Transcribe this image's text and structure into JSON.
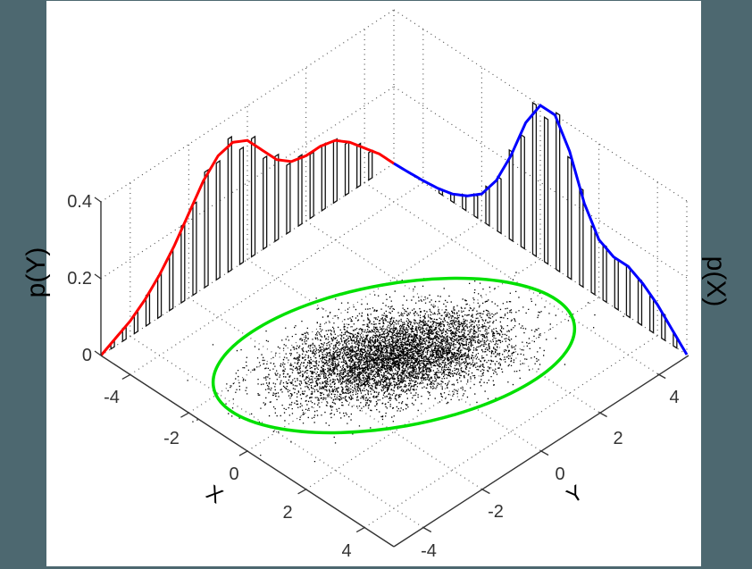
{
  "colors": {
    "background": "#4d6870",
    "panel": "#ffffff",
    "red_curve": "#ff0000",
    "blue_curve": "#0000ff",
    "ellipse": "#00e000",
    "scatter": "#000000",
    "grid": "#555555",
    "axis": "#333333"
  },
  "chart_data": {
    "type": "scatter",
    "title": "",
    "description": "3D view of a bivariate normal sample (scatter on the X-Y floor) with a green confidence ellipse, and marginal densities with histograms projected onto the back walls: p(Y) in red on the left wall, p(X) in blue on the right wall.",
    "xlabel": "X",
    "ylabel": "Y",
    "zlabel_left": "p(Y)",
    "zlabel_right": "p(X)",
    "x_ticks": [
      "-4",
      "-2",
      "0",
      "2",
      "4"
    ],
    "y_ticks": [
      "-4",
      "-2",
      "0",
      "2",
      "4"
    ],
    "z_ticks": [
      "0",
      "0.2",
      "0.4"
    ],
    "xlim": [
      -5,
      5
    ],
    "ylim": [
      -5,
      5
    ],
    "zlim": [
      0,
      0.4
    ],
    "grid": true,
    "series": [
      {
        "name": "p(Y)",
        "type": "line",
        "color": "#ff0000",
        "x": [
          -5,
          -4.5,
          -4,
          -3.5,
          -3,
          -2.5,
          -2,
          -1.5,
          -1,
          -0.5,
          0,
          0.5,
          1,
          1.5,
          2,
          2.5,
          3,
          3.5,
          4,
          4.5,
          5
        ],
        "values": [
          0.0,
          0.02,
          0.04,
          0.07,
          0.11,
          0.16,
          0.22,
          0.28,
          0.32,
          0.33,
          0.31,
          0.26,
          0.21,
          0.18,
          0.17,
          0.17,
          0.16,
          0.13,
          0.09,
          0.05,
          0.0
        ]
      },
      {
        "name": "p(X)",
        "type": "line",
        "color": "#0000ff",
        "x": [
          -5,
          -4.5,
          -4,
          -3.5,
          -3,
          -2.5,
          -2,
          -1.5,
          -1,
          -0.5,
          0,
          0.5,
          1,
          1.5,
          2,
          2.5,
          3,
          3.5,
          4,
          4.5,
          5
        ],
        "values": [
          0.0,
          0.04,
          0.08,
          0.11,
          0.13,
          0.13,
          0.15,
          0.22,
          0.33,
          0.4,
          0.4,
          0.33,
          0.22,
          0.13,
          0.07,
          0.04,
          0.02,
          0.01,
          0.005,
          0.002,
          0.0
        ]
      },
      {
        "name": "samples",
        "type": "scatter",
        "color": "#000000",
        "mean": [
          0.3,
          0.3
        ],
        "approx_count": 10000
      },
      {
        "name": "confidence-ellipse",
        "type": "line",
        "color": "#00e000"
      }
    ]
  },
  "axes": {
    "z_ticks": [
      {
        "label": "0",
        "x": 103,
        "y": 404
      },
      {
        "label": "0.2",
        "x": 103,
        "y": 318
      },
      {
        "label": "0.4",
        "x": 103,
        "y": 232
      }
    ],
    "x_ticks": [
      {
        "label": "-4",
        "x": 125,
        "y": 451
      },
      {
        "label": "-2",
        "x": 192,
        "y": 497
      },
      {
        "label": "0",
        "x": 262,
        "y": 537
      },
      {
        "label": "2",
        "x": 322,
        "y": 580
      },
      {
        "label": "4",
        "x": 388,
        "y": 623
      }
    ],
    "y_ticks": [
      {
        "label": "-4",
        "x": 480,
        "y": 623
      },
      {
        "label": "-2",
        "x": 555,
        "y": 579
      },
      {
        "label": "0",
        "x": 627,
        "y": 537
      },
      {
        "label": "2",
        "x": 692,
        "y": 497
      },
      {
        "label": "4",
        "x": 755,
        "y": 451
      }
    ],
    "x_label": "X",
    "y_label": "Y",
    "left_label": "p(Y)",
    "right_label": "p(X)"
  }
}
